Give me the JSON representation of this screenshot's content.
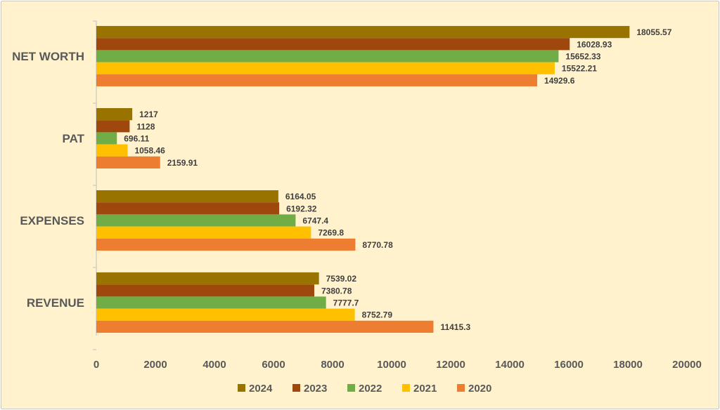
{
  "chart_data": {
    "type": "bar",
    "orientation": "horizontal",
    "categories": [
      "NET WORTH",
      "PAT",
      "EXPENSES",
      "REVENUE"
    ],
    "series": [
      {
        "name": "2024",
        "color": "#997300",
        "values": [
          18055.57,
          1217,
          6164.05,
          7539.02
        ]
      },
      {
        "name": "2023",
        "color": "#9e480e",
        "values": [
          16028.93,
          1128,
          6192.32,
          7380.78
        ]
      },
      {
        "name": "2022",
        "color": "#70ad47",
        "values": [
          15652.33,
          696.11,
          6747.4,
          7777.7
        ]
      },
      {
        "name": "2021",
        "color": "#ffc000",
        "values": [
          15522.21,
          1058.46,
          7269.8,
          8752.79
        ]
      },
      {
        "name": "2020",
        "color": "#ed7d31",
        "values": [
          14929.6,
          2159.91,
          8770.78,
          11415.3
        ]
      }
    ],
    "data_labels": [
      [
        "18055.57",
        "1217",
        "6164.05",
        "7539.02"
      ],
      [
        "16028.93",
        "1128",
        "6192.32",
        "7380.78"
      ],
      [
        "15652.33",
        "696.11",
        "6747.4",
        "7777.7"
      ],
      [
        "15522.21",
        "1058.46",
        "7269.8",
        "8752.79"
      ],
      [
        "14929.6",
        "2159.91",
        "8770.78",
        "11415.3"
      ]
    ],
    "x_ticks": [
      "0",
      "2000",
      "4000",
      "6000",
      "8000",
      "10000",
      "12000",
      "14000",
      "16000",
      "18000",
      "20000"
    ],
    "xlim": [
      0,
      20000
    ],
    "legend_order": [
      "2024",
      "2023",
      "2022",
      "2021",
      "2020"
    ],
    "legend_position": "bottom",
    "grid": false,
    "colors": {
      "background": "#fff2cc",
      "axis": "#bfbfbf",
      "text": "#595959"
    }
  }
}
